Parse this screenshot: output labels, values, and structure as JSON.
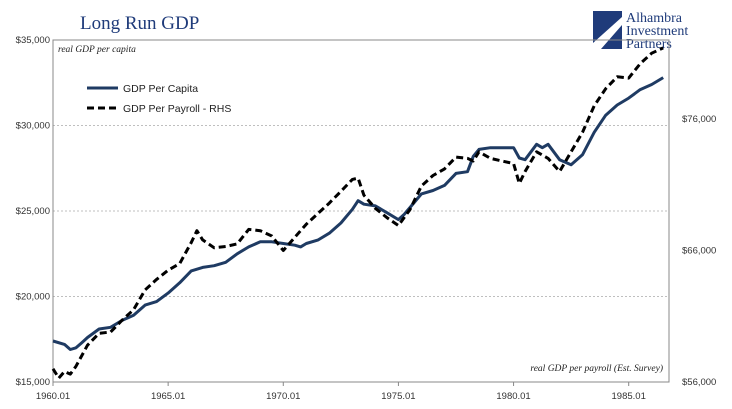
{
  "logo": {
    "line1": "Alhambra",
    "line2": "Investment",
    "line3": "Partners"
  },
  "chart_data": {
    "type": "line",
    "title": "Long Run GDP",
    "left_axis": {
      "label": "real GDP per capita",
      "range": [
        15000,
        35000
      ],
      "ticks": [
        15000,
        20000,
        25000,
        30000,
        35000
      ],
      "tick_labels": [
        "$15,000",
        "$20,000",
        "$25,000",
        "$30,000",
        "$35,000"
      ]
    },
    "right_axis": {
      "label": "real GDP per payroll (Est. Survey)",
      "range": [
        56000,
        82000
      ],
      "ticks": [
        56000,
        66000,
        76000
      ],
      "tick_labels": [
        "$56,000",
        "$66,000",
        "$76,000"
      ]
    },
    "x_axis": {
      "range": [
        1960.0,
        1986.75
      ],
      "ticks": [
        1960,
        1965,
        1970,
        1975,
        1980,
        1985
      ],
      "tick_labels": [
        "1960.01",
        "1965.01",
        "1970.01",
        "1975.01",
        "1980.01",
        "1985.01"
      ]
    },
    "grid": "horizontal dashed",
    "legend": {
      "position": "top-left"
    },
    "colors": {
      "capita": "#1f3b63",
      "payroll": "#000000",
      "title": "#1f3b7a",
      "grid": "#aaaaaa"
    },
    "series": [
      {
        "name": "GDP Per Capita",
        "axis": "left",
        "style": "solid",
        "x": [
          1960.0,
          1960.5,
          1960.75,
          1961.0,
          1961.25,
          1961.5,
          1962.0,
          1962.5,
          1963.0,
          1963.5,
          1964.0,
          1964.5,
          1965.0,
          1965.5,
          1966.0,
          1966.5,
          1967.0,
          1967.5,
          1968.0,
          1968.5,
          1969.0,
          1969.5,
          1970.0,
          1970.5,
          1970.75,
          1971.0,
          1971.5,
          1972.0,
          1972.5,
          1973.0,
          1973.25,
          1973.5,
          1974.0,
          1974.5,
          1975.0,
          1975.25,
          1975.5,
          1976.0,
          1976.5,
          1977.0,
          1977.5,
          1978.0,
          1978.25,
          1978.5,
          1979.0,
          1979.5,
          1980.0,
          1980.25,
          1980.5,
          1981.0,
          1981.25,
          1981.5,
          1982.0,
          1982.5,
          1983.0,
          1983.5,
          1984.0,
          1984.5,
          1985.0,
          1985.5,
          1986.0,
          1986.5
        ],
        "values": [
          17400,
          17200,
          16900,
          17000,
          17300,
          17600,
          18100,
          18200,
          18600,
          18900,
          19500,
          19700,
          20200,
          20800,
          21500,
          21700,
          21800,
          22000,
          22500,
          22900,
          23200,
          23200,
          23100,
          23000,
          22900,
          23100,
          23300,
          23700,
          24300,
          25100,
          25600,
          25400,
          25300,
          24900,
          24500,
          24800,
          25200,
          26000,
          26200,
          26500,
          27200,
          27300,
          28200,
          28600,
          28700,
          28700,
          28700,
          28100,
          28000,
          28900,
          28700,
          28900,
          28000,
          27700,
          28300,
          29600,
          30600,
          31200,
          31600,
          32100,
          32400,
          32800
        ]
      },
      {
        "name": "GDP Per Payroll - RHS",
        "axis": "right",
        "style": "dashed",
        "x": [
          1960.0,
          1960.25,
          1960.5,
          1960.75,
          1961.0,
          1961.5,
          1962.0,
          1962.5,
          1963.0,
          1963.5,
          1964.0,
          1964.5,
          1965.0,
          1965.5,
          1966.0,
          1966.25,
          1966.5,
          1967.0,
          1967.5,
          1968.0,
          1968.5,
          1969.0,
          1969.5,
          1970.0,
          1970.5,
          1971.0,
          1971.5,
          1972.0,
          1972.5,
          1973.0,
          1973.25,
          1973.5,
          1974.0,
          1974.5,
          1975.0,
          1975.5,
          1976.0,
          1976.5,
          1977.0,
          1977.5,
          1978.0,
          1978.25,
          1978.5,
          1979.0,
          1979.5,
          1980.0,
          1980.25,
          1980.5,
          1981.0,
          1981.5,
          1982.0,
          1982.5,
          1983.0,
          1983.5,
          1984.0,
          1984.5,
          1985.0,
          1985.5,
          1986.0,
          1986.5
        ],
        "values": [
          57000,
          56300,
          56800,
          56600,
          57200,
          58800,
          59700,
          59800,
          60700,
          61500,
          63000,
          63800,
          64500,
          65000,
          66600,
          67500,
          66800,
          66200,
          66300,
          66500,
          67600,
          67500,
          67100,
          66000,
          67000,
          68000,
          68800,
          69600,
          70500,
          71400,
          71500,
          70200,
          69200,
          68500,
          67900,
          69100,
          70900,
          71700,
          72200,
          73100,
          73000,
          72800,
          73500,
          73000,
          72800,
          72600,
          71100,
          72000,
          73500,
          73000,
          72000,
          73500,
          75000,
          77000,
          78300,
          79200,
          79100,
          80200,
          81000,
          81400
        ]
      }
    ]
  }
}
